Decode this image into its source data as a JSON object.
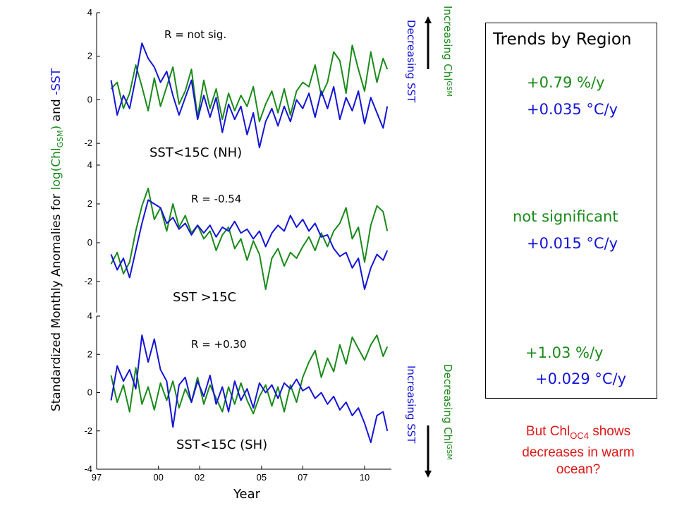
{
  "y_axis_label": {
    "prefix": "Standardized Monthly Anomalies for ",
    "chl": "log(Chl",
    "chl_sub": "GSM",
    "chl_close": ")",
    "and": " and ",
    "sst": "-SST"
  },
  "x_axis_label": "Year",
  "top_indicator": {
    "chl_text": "Increasing Chl",
    "chl_sub": "GSM",
    "sst_text": "Decreasing SST"
  },
  "bottom_indicator": {
    "chl_text": "Decreasing Chl",
    "chl_sub": "GSM",
    "sst_text": "Increasing SST"
  },
  "trend_box": {
    "title": "Trends by Region",
    "nh_chl": "+0.79 %/y",
    "nh_sst": "+0.035 °C/y",
    "warm_chl": "not significant",
    "warm_sst": "+0.015 °C/y",
    "sh_chl": "+1.03 %/y",
    "sh_sst": "+0.029 °C/y"
  },
  "note": {
    "line1_pre": "But Chl",
    "line1_sub": "OC4",
    "line1_post": " shows",
    "line2": "decreases in warm",
    "line3": "ocean?"
  },
  "colors": {
    "chl": "#1a8a1a",
    "sst": "#1414d6",
    "note": "#e01818"
  },
  "chart_data": [
    {
      "type": "line",
      "region_label": "SST<15C (NH)",
      "correlation": "R = not sig.",
      "xlim": [
        1997,
        2011.3
      ],
      "ylim": [
        -3,
        4
      ],
      "yticks": [
        -2,
        0,
        2,
        4
      ],
      "xticks": [
        1997,
        2000,
        2002,
        2005,
        2007,
        2010
      ],
      "xtick_labels": [
        "97",
        "00",
        "02",
        "05",
        "07",
        "10"
      ],
      "series": [
        {
          "color": "chl",
          "x": [
            1997.7,
            1998.0,
            1998.3,
            1998.6,
            1998.9,
            1999.2,
            1999.5,
            1999.8,
            2000.1,
            2000.4,
            2000.7,
            2001.0,
            2001.3,
            2001.6,
            2001.9,
            2002.2,
            2002.5,
            2002.8,
            2003.1,
            2003.4,
            2003.7,
            2004.0,
            2004.3,
            2004.6,
            2004.9,
            2005.2,
            2005.5,
            2005.8,
            2006.1,
            2006.4,
            2006.7,
            2007.0,
            2007.3,
            2007.6,
            2007.9,
            2008.2,
            2008.5,
            2008.8,
            2009.1,
            2009.4,
            2009.7,
            2010.0,
            2010.3,
            2010.6,
            2010.9,
            2011.1
          ],
          "y": [
            0.5,
            0.8,
            -0.4,
            0.3,
            1.6,
            0.6,
            -0.5,
            1.0,
            -0.3,
            0.6,
            1.5,
            -0.2,
            0.4,
            1.4,
            -0.8,
            0.9,
            -0.4,
            0.5,
            -0.9,
            0.3,
            -0.5,
            0.2,
            -0.3,
            0.6,
            -1.0,
            -0.2,
            0.4,
            -0.6,
            0.5,
            -0.7,
            0.4,
            0.8,
            0.6,
            1.6,
            0.2,
            0.8,
            2.2,
            1.8,
            0.3,
            2.5,
            1.4,
            0.4,
            2.2,
            0.8,
            1.9,
            1.4
          ]
        },
        {
          "color": "sst",
          "x": [
            1997.7,
            1998.0,
            1998.3,
            1998.6,
            1998.9,
            1999.2,
            1999.5,
            1999.8,
            2000.1,
            2000.4,
            2000.7,
            2001.0,
            2001.3,
            2001.6,
            2001.9,
            2002.2,
            2002.5,
            2002.8,
            2003.1,
            2003.4,
            2003.7,
            2004.0,
            2004.3,
            2004.6,
            2004.9,
            2005.2,
            2005.5,
            2005.8,
            2006.1,
            2006.4,
            2006.7,
            2007.0,
            2007.3,
            2007.6,
            2007.9,
            2008.2,
            2008.5,
            2008.8,
            2009.1,
            2009.4,
            2009.7,
            2010.0,
            2010.3,
            2010.6,
            2010.9,
            2011.1
          ],
          "y": [
            0.9,
            -0.7,
            0.2,
            -0.4,
            1.0,
            2.6,
            1.9,
            1.5,
            0.8,
            1.3,
            0.2,
            -0.7,
            0.1,
            0.9,
            -0.9,
            0.2,
            -0.8,
            0.1,
            -1.5,
            -0.2,
            -0.9,
            -0.3,
            -1.6,
            -0.6,
            -2.2,
            -1.0,
            -0.4,
            -1.2,
            -0.3,
            -1.0,
            0.0,
            -0.4,
            0.3,
            -0.8,
            0.4,
            -0.4,
            0.6,
            -0.9,
            0.1,
            -0.5,
            0.4,
            -1.1,
            0.1,
            -0.6,
            -1.3,
            -0.3
          ]
        }
      ]
    },
    {
      "type": "line",
      "region_label": "SST >15C",
      "correlation": "R = -0.54",
      "xlim": [
        1997,
        2011.3
      ],
      "ylim": [
        -3.6,
        4
      ],
      "yticks": [
        -2,
        0,
        2,
        4
      ],
      "series": [
        {
          "color": "chl",
          "x": [
            1997.7,
            1998.0,
            1998.3,
            1998.6,
            1998.9,
            1999.2,
            1999.5,
            1999.8,
            2000.1,
            2000.4,
            2000.7,
            2001.0,
            2001.3,
            2001.6,
            2001.9,
            2002.2,
            2002.5,
            2002.8,
            2003.1,
            2003.4,
            2003.7,
            2004.0,
            2004.3,
            2004.6,
            2004.9,
            2005.2,
            2005.5,
            2005.8,
            2006.1,
            2006.4,
            2006.7,
            2007.0,
            2007.3,
            2007.6,
            2007.9,
            2008.2,
            2008.5,
            2008.8,
            2009.1,
            2009.4,
            2009.7,
            2010.0,
            2010.3,
            2010.6,
            2010.9,
            2011.1
          ],
          "y": [
            -1.1,
            -0.5,
            -1.6,
            -1.0,
            0.6,
            1.9,
            2.8,
            1.2,
            1.8,
            0.6,
            2.0,
            0.8,
            1.4,
            0.5,
            0.9,
            0.2,
            0.6,
            -0.4,
            0.4,
            0.8,
            -0.3,
            0.2,
            -0.9,
            0.1,
            -0.6,
            -2.4,
            -0.8,
            -0.3,
            -1.2,
            -0.5,
            -0.8,
            -0.2,
            0.3,
            -0.4,
            0.5,
            -0.2,
            0.6,
            1.0,
            1.8,
            0.2,
            0.8,
            -1.0,
            0.9,
            1.9,
            1.6,
            0.6
          ]
        },
        {
          "color": "sst",
          "x": [
            1997.7,
            1998.0,
            1998.3,
            1998.6,
            1998.9,
            1999.2,
            1999.5,
            1999.8,
            2000.1,
            2000.4,
            2000.7,
            2001.0,
            2001.3,
            2001.6,
            2001.9,
            2002.2,
            2002.5,
            2002.8,
            2003.1,
            2003.4,
            2003.7,
            2004.0,
            2004.3,
            2004.6,
            2004.9,
            2005.2,
            2005.5,
            2005.8,
            2006.1,
            2006.4,
            2006.7,
            2007.0,
            2007.3,
            2007.6,
            2007.9,
            2008.2,
            2008.5,
            2008.8,
            2009.1,
            2009.4,
            2009.7,
            2010.0,
            2010.3,
            2010.6,
            2010.9,
            2011.1
          ],
          "y": [
            -0.6,
            -1.4,
            -0.8,
            -1.8,
            -0.4,
            1.0,
            2.2,
            2.0,
            1.8,
            1.0,
            1.3,
            0.7,
            1.0,
            0.4,
            0.9,
            0.5,
            0.9,
            0.3,
            0.8,
            0.6,
            1.1,
            0.5,
            0.7,
            0.2,
            0.6,
            -0.2,
            0.5,
            0.9,
            0.6,
            1.4,
            0.8,
            1.2,
            0.6,
            1.0,
            0.3,
            0.4,
            -0.3,
            -0.7,
            -0.5,
            -1.3,
            -0.8,
            -2.4,
            -1.3,
            -0.6,
            -0.9,
            -0.4
          ]
        }
      ]
    },
    {
      "type": "line",
      "region_label": "SST<15C (SH)",
      "correlation": "R = +0.30",
      "xlim": [
        1997,
        2011.3
      ],
      "ylim": [
        -4,
        4
      ],
      "yticks": [
        -4,
        -2,
        0,
        2,
        4
      ],
      "series": [
        {
          "color": "chl",
          "x": [
            1997.7,
            1998.0,
            1998.3,
            1998.6,
            1998.9,
            1999.2,
            1999.5,
            1999.8,
            2000.1,
            2000.4,
            2000.7,
            2001.0,
            2001.3,
            2001.6,
            2001.9,
            2002.2,
            2002.5,
            2002.8,
            2003.1,
            2003.4,
            2003.7,
            2004.0,
            2004.3,
            2004.6,
            2004.9,
            2005.2,
            2005.5,
            2005.8,
            2006.1,
            2006.4,
            2006.7,
            2007.0,
            2007.3,
            2007.6,
            2007.9,
            2008.2,
            2008.5,
            2008.8,
            2009.1,
            2009.4,
            2009.7,
            2010.0,
            2010.3,
            2010.6,
            2010.9,
            2011.1
          ],
          "y": [
            0.9,
            -0.5,
            0.4,
            -1.0,
            1.3,
            -0.6,
            0.3,
            -0.9,
            0.5,
            -0.4,
            0.6,
            -0.8,
            0.2,
            -0.5,
            0.8,
            -0.6,
            0.4,
            -0.3,
            -1.0,
            0.3,
            -0.6,
            0.5,
            -0.4,
            -1.1,
            -0.2,
            0.4,
            -0.7,
            0.3,
            -1.0,
            0.4,
            -0.5,
            0.8,
            1.6,
            2.2,
            0.8,
            1.8,
            1.1,
            2.5,
            1.5,
            2.9,
            2.3,
            1.7,
            2.5,
            3.0,
            1.9,
            2.4
          ]
        },
        {
          "color": "sst",
          "x": [
            1997.7,
            1998.0,
            1998.3,
            1998.6,
            1998.9,
            1999.2,
            1999.5,
            1999.8,
            2000.1,
            2000.4,
            2000.7,
            2001.0,
            2001.3,
            2001.6,
            2001.9,
            2002.2,
            2002.5,
            2002.8,
            2003.1,
            2003.4,
            2003.7,
            2004.0,
            2004.3,
            2004.6,
            2004.9,
            2005.2,
            2005.5,
            2005.8,
            2006.1,
            2006.4,
            2006.7,
            2007.0,
            2007.3,
            2007.6,
            2007.9,
            2008.2,
            2008.5,
            2008.8,
            2009.1,
            2009.4,
            2009.7,
            2010.0,
            2010.3,
            2010.6,
            2010.9,
            2011.1
          ],
          "y": [
            -0.4,
            1.4,
            0.6,
            1.2,
            0.2,
            3.0,
            1.6,
            2.8,
            1.2,
            0.6,
            -1.8,
            0.4,
            0.8,
            -0.5,
            0.6,
            -0.2,
            0.9,
            -0.6,
            0.3,
            -1.0,
            0.6,
            -0.4,
            0.2,
            -0.8,
            0.5,
            0.0,
            0.4,
            -0.3,
            0.5,
            0.2,
            0.7,
            0.1,
            0.3,
            -0.3,
            0.0,
            -0.6,
            -0.2,
            -0.9,
            -0.5,
            -1.2,
            -0.8,
            -1.6,
            -2.6,
            -1.2,
            -1.0,
            -2.0
          ]
        }
      ]
    }
  ]
}
